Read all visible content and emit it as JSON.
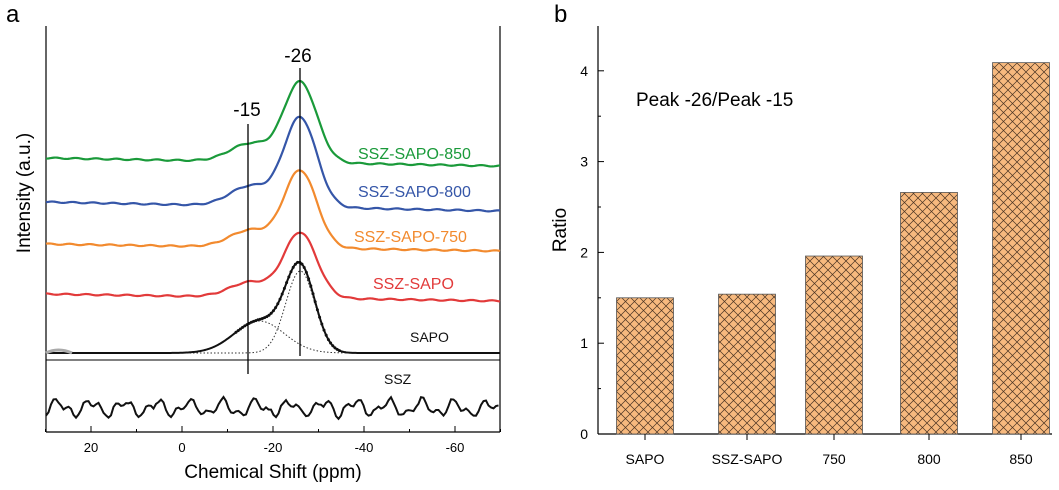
{
  "panel_a": {
    "letter": "a",
    "xlabel": "Chemical Shift (ppm)",
    "ylabel": "Intensity (a.u.)",
    "peak_labels": [
      "-26",
      "-15"
    ],
    "tick_labels": [
      "20",
      "0",
      "-20",
      "-40",
      "-60"
    ],
    "spectra": [
      {
        "label": "SSZ-SAPO-850",
        "color": "#1a9a3a"
      },
      {
        "label": "SSZ-SAPO-800",
        "color": "#3556a8"
      },
      {
        "label": "SSZ-SAPO-750",
        "color": "#f28a2e"
      },
      {
        "label": "SSZ-SAPO",
        "color": "#e23a3a"
      },
      {
        "label": "SAPO",
        "color": "#111111"
      },
      {
        "label": "SSZ",
        "color": "#111111"
      }
    ]
  },
  "panel_b": {
    "letter": "b"
  },
  "chart_data": [
    {
      "type": "line",
      "xlabel": "Chemical Shift (ppm)",
      "ylabel": "Intensity (a.u.)",
      "xlim": [
        30,
        -70
      ],
      "x_ticks": [
        20,
        0,
        -20,
        -40,
        -60
      ],
      "reference_lines_ppm": [
        -15,
        -26
      ],
      "series": [
        {
          "name": "SSZ-SAPO-850",
          "color": "#1a9a3a",
          "main_peak_ppm": -26,
          "shoulder_ppm": -15
        },
        {
          "name": "SSZ-SAPO-800",
          "color": "#3556a8",
          "main_peak_ppm": -26,
          "shoulder_ppm": -15
        },
        {
          "name": "SSZ-SAPO-750",
          "color": "#f28a2e",
          "main_peak_ppm": -26,
          "shoulder_ppm": -15
        },
        {
          "name": "SSZ-SAPO",
          "color": "#e23a3a",
          "main_peak_ppm": -26,
          "shoulder_ppm": -15
        },
        {
          "name": "SAPO",
          "color": "#111111",
          "main_peak_ppm": -26,
          "shoulder_ppm": -17
        },
        {
          "name": "SSZ",
          "color": "#111111",
          "noise_only": true
        }
      ],
      "grid": false
    },
    {
      "type": "bar",
      "title": "Peak -26/Peak -15",
      "xlabel": "",
      "ylabel": "Ratio",
      "categories": [
        "SAPO",
        "SSZ-SAPO",
        "750",
        "800",
        "850"
      ],
      "values": [
        1.5,
        1.54,
        1.96,
        2.66,
        4.09
      ],
      "ylim": [
        0,
        4.45
      ],
      "y_ticks": [
        0,
        1,
        2,
        3,
        4
      ],
      "bar_color": "#f7b97e",
      "hatch": "crosshatch",
      "grid": false
    }
  ]
}
